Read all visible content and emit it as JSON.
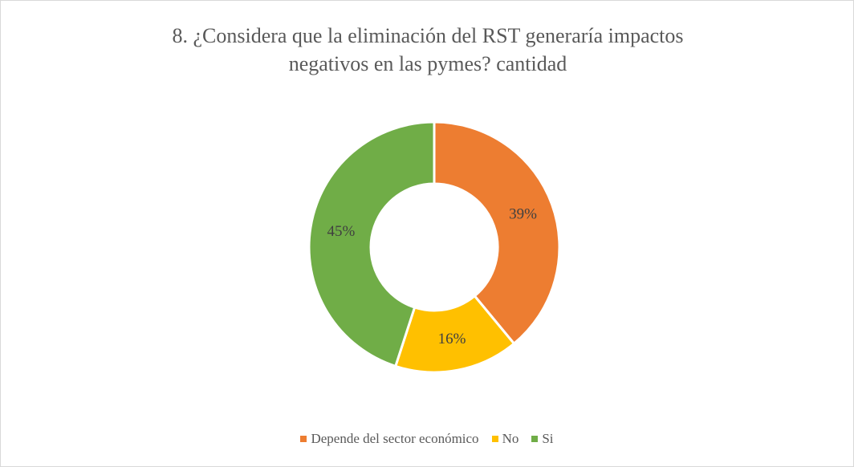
{
  "chart_data": {
    "type": "doughnut",
    "title": "8. ¿Considera que la eliminación del RST generaría impactos negativos en las pymes? cantidad",
    "categories": [
      "Depende del sector económico",
      "No",
      "Si"
    ],
    "values": [
      39,
      16,
      45
    ],
    "value_labels": [
      "39%",
      "16%",
      "45%"
    ],
    "colors": [
      "#ED7D31",
      "#FFC000",
      "#70AD47"
    ],
    "legend": "bottom"
  }
}
